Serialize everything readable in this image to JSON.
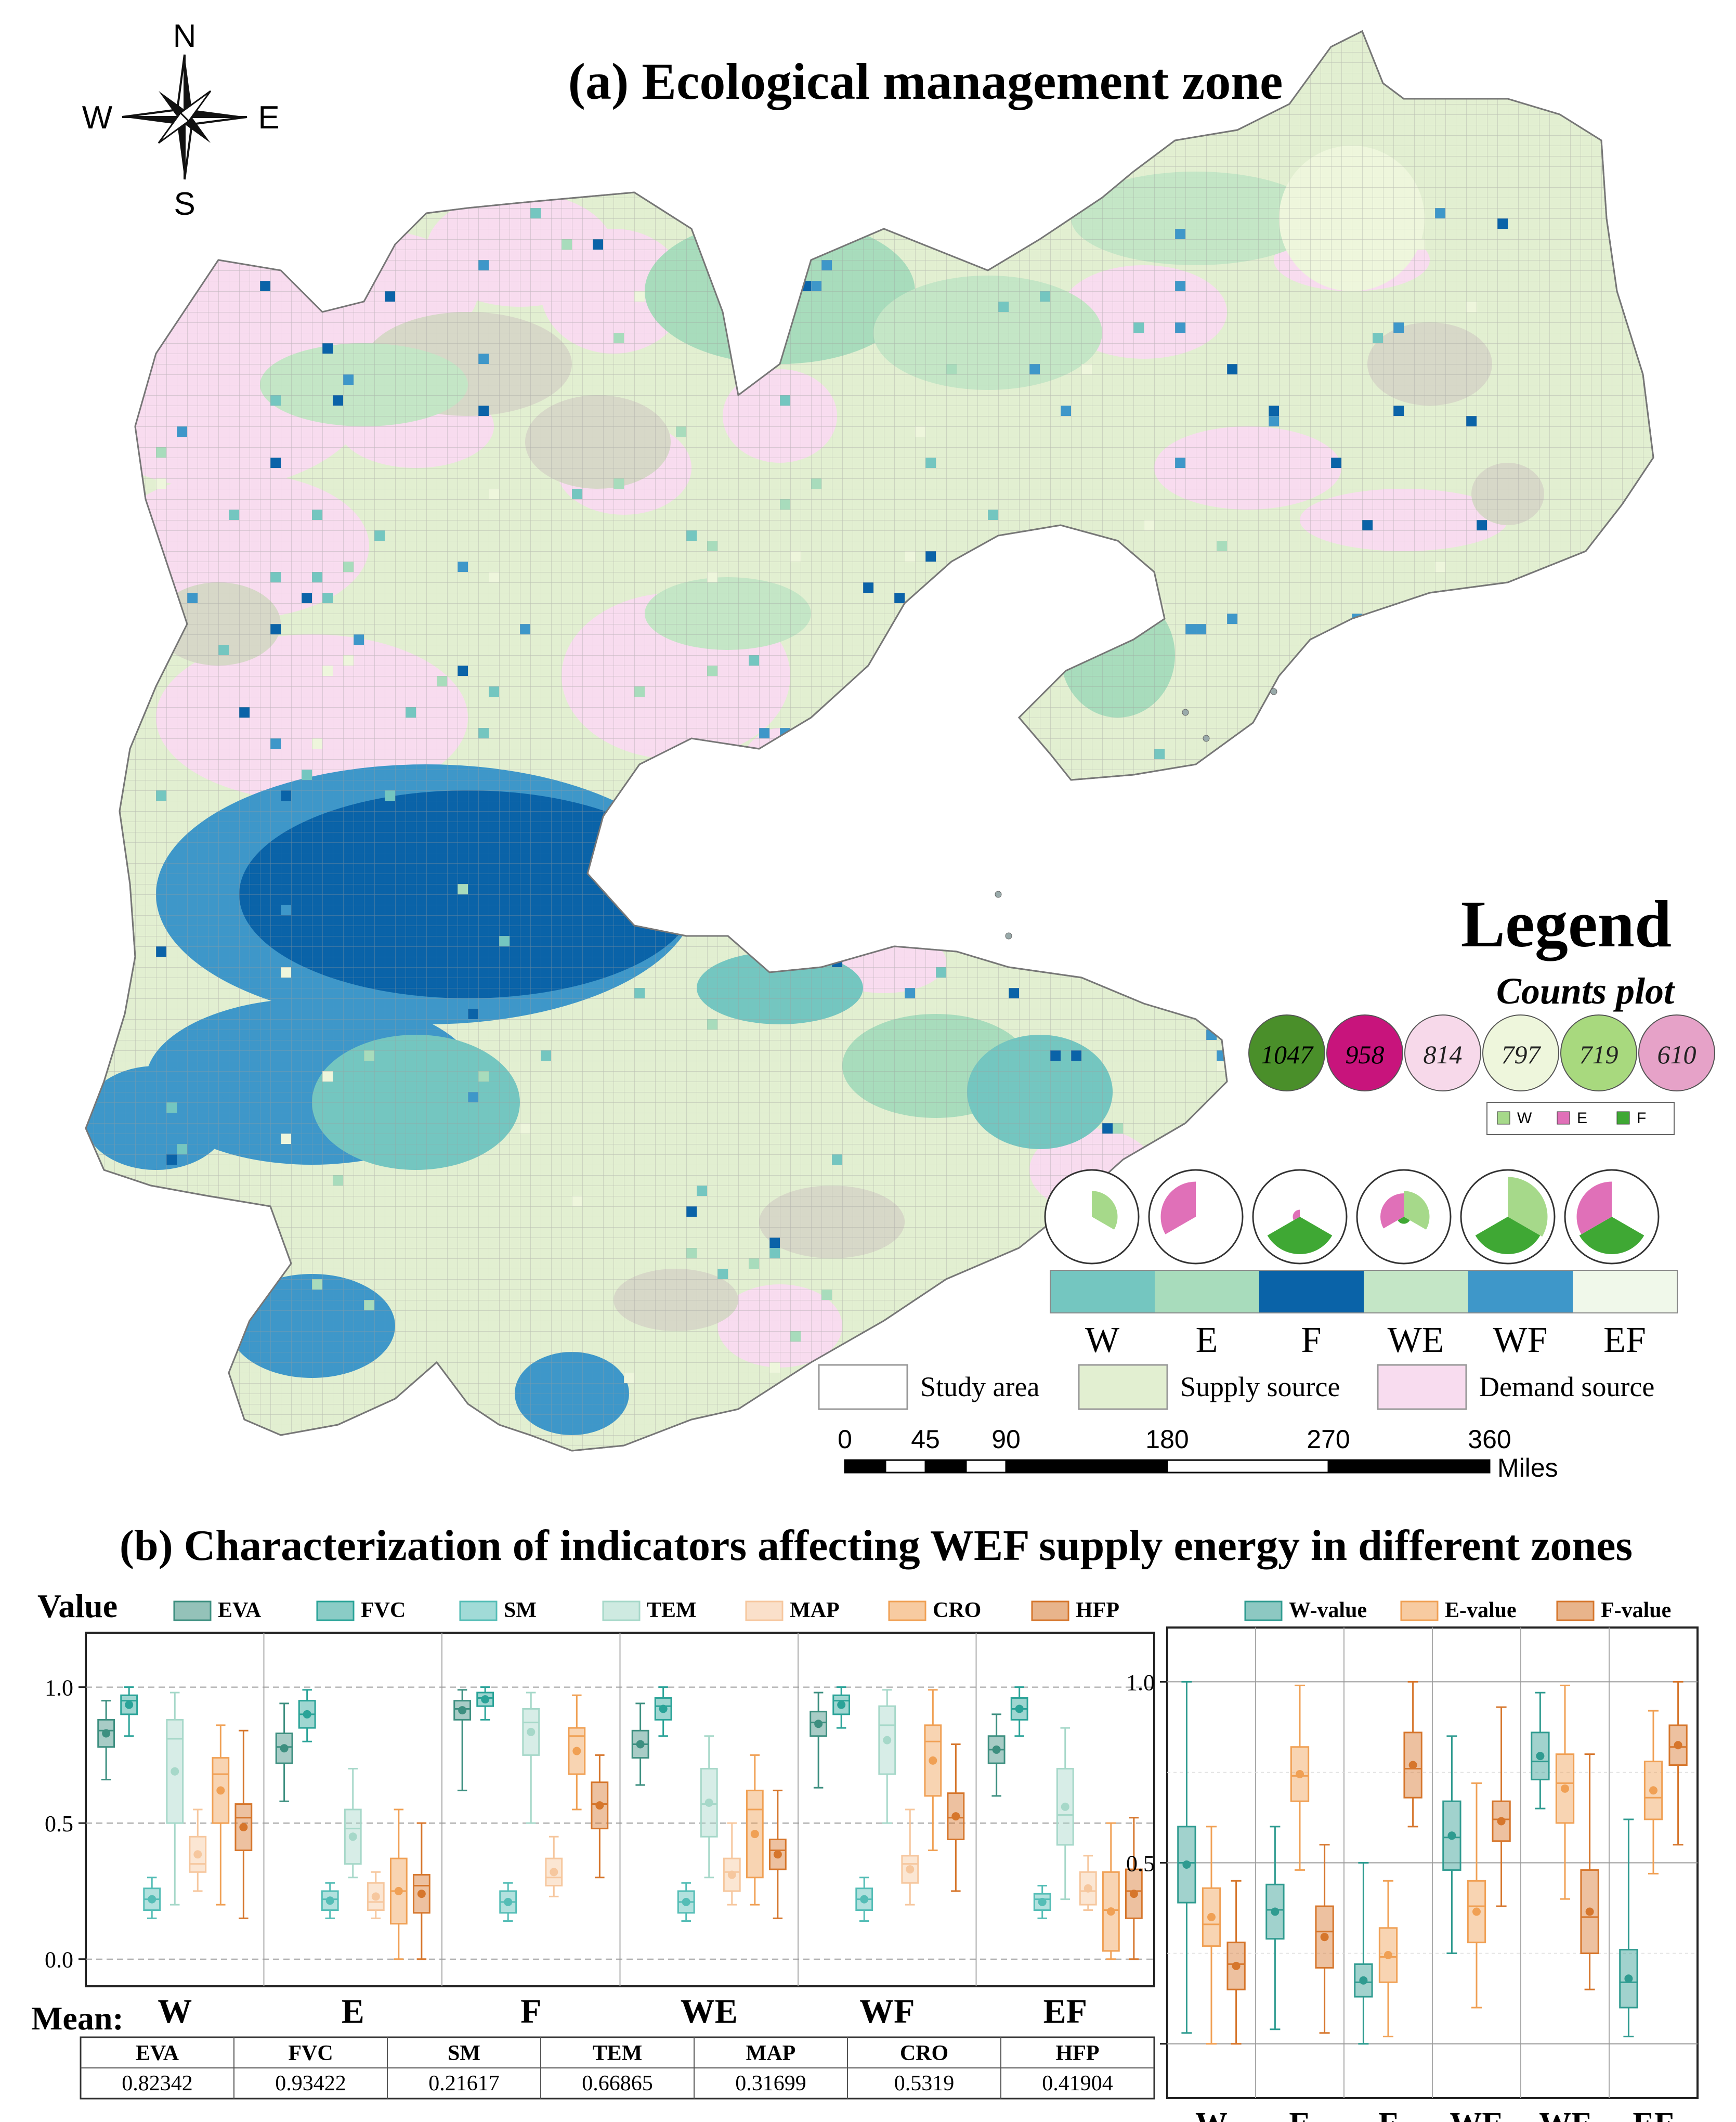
{
  "panel_a": {
    "title": "(a) Ecological management zone",
    "compass": {
      "n": "N",
      "s": "S",
      "w": "W",
      "e": "E"
    },
    "legend": {
      "title": "Legend",
      "counts_title": "Counts plot",
      "counts": [
        {
          "value": "1047",
          "color": "#4a8f2a"
        },
        {
          "value": "958",
          "color": "#c8147c"
        },
        {
          "value": "814",
          "color": "#f7d9ea"
        },
        {
          "value": "797",
          "color": "#eef6dc"
        },
        {
          "value": "719",
          "color": "#a8d97e"
        },
        {
          "value": "610",
          "color": "#e6a2c8"
        }
      ],
      "wef_keys": [
        {
          "label": "W",
          "color": "#a6d98a"
        },
        {
          "label": "E",
          "color": "#e070b8"
        },
        {
          "label": "F",
          "color": "#3fa834"
        }
      ],
      "roses": [
        {
          "W": 0.55,
          "E": 0,
          "F": 0
        },
        {
          "W": 0,
          "E": 0.75,
          "F": 0
        },
        {
          "W": 0,
          "E": 0.15,
          "F": 0.8
        },
        {
          "W": 0.55,
          "E": 0.5,
          "F": 0.15
        },
        {
          "W": 0.85,
          "E": 0,
          "F": 0.8
        },
        {
          "W": 0,
          "E": 0.75,
          "F": 0.8
        }
      ],
      "zones": [
        {
          "label": "W",
          "color": "#74c6c0"
        },
        {
          "label": "E",
          "color": "#a8dcbc"
        },
        {
          "label": "F",
          "color": "#0a63a8"
        },
        {
          "label": "WE",
          "color": "#c4e6c6"
        },
        {
          "label": "WF",
          "color": "#3e97c9"
        },
        {
          "label": "EF",
          "color": "#f0f8ea"
        }
      ],
      "areas": [
        {
          "label": "Study area",
          "color": "#ffffff"
        },
        {
          "label": "Supply source",
          "color": "#e2efd1"
        },
        {
          "label": "Demand source",
          "color": "#f8dcef"
        }
      ]
    },
    "scale": {
      "ticks": [
        "0",
        "45",
        "90",
        "180",
        "270",
        "360"
      ],
      "unit": "Miles"
    }
  },
  "panel_b": {
    "title": "(b) Characterization of indicators affecting WEF supply energy in different zones",
    "value_label": "Value",
    "mean_label": "Mean:",
    "mean_table": {
      "headers": [
        "EVA",
        "FVC",
        "SM",
        "TEM",
        "MAP",
        "CRO",
        "HFP"
      ],
      "values": [
        "0.82342",
        "0.93422",
        "0.21617",
        "0.66865",
        "0.31699",
        "0.5319",
        "0.41904"
      ]
    }
  },
  "chart_data": [
    {
      "type": "box",
      "categories": [
        "W",
        "E",
        "F",
        "WE",
        "WF",
        "EF"
      ],
      "ylabel": "Value",
      "ylim": [
        -0.1,
        1.2
      ],
      "yticks": [
        "0.0",
        "0.5",
        "1.0"
      ],
      "grid": "dashed horizontal at 0.0, 0.5, 1.0",
      "legend_position": "top",
      "series": [
        {
          "name": "EVA",
          "color": "#3d8f80",
          "boxes": [
            [
              0.66,
              0.78,
              0.84,
              0.88,
              0.95
            ],
            [
              0.58,
              0.72,
              0.78,
              0.83,
              0.94
            ],
            [
              0.62,
              0.88,
              0.92,
              0.95,
              0.99
            ],
            [
              0.64,
              0.74,
              0.79,
              0.84,
              0.94
            ],
            [
              0.63,
              0.82,
              0.87,
              0.91,
              0.98
            ],
            [
              0.6,
              0.72,
              0.77,
              0.82,
              0.9
            ]
          ]
        },
        {
          "name": "FVC",
          "color": "#2aa398",
          "boxes": [
            [
              0.82,
              0.9,
              0.95,
              0.97,
              1.0
            ],
            [
              0.8,
              0.85,
              0.9,
              0.95,
              0.99
            ],
            [
              0.88,
              0.93,
              0.96,
              0.98,
              1.0
            ],
            [
              0.82,
              0.88,
              0.93,
              0.96,
              1.0
            ],
            [
              0.85,
              0.9,
              0.95,
              0.97,
              1.0
            ],
            [
              0.82,
              0.88,
              0.92,
              0.96,
              1.0
            ]
          ]
        },
        {
          "name": "SM",
          "color": "#54bdb6",
          "boxes": [
            [
              0.15,
              0.18,
              0.22,
              0.26,
              0.3
            ],
            [
              0.15,
              0.18,
              0.22,
              0.25,
              0.28
            ],
            [
              0.14,
              0.17,
              0.21,
              0.25,
              0.28
            ],
            [
              0.14,
              0.17,
              0.21,
              0.25,
              0.28
            ],
            [
              0.14,
              0.18,
              0.22,
              0.26,
              0.3
            ],
            [
              0.15,
              0.18,
              0.22,
              0.24,
              0.27
            ]
          ]
        },
        {
          "name": "TEM",
          "color": "#a6d8c9",
          "boxes": [
            [
              0.2,
              0.5,
              0.81,
              0.88,
              0.98
            ],
            [
              0.3,
              0.35,
              0.48,
              0.55,
              0.7
            ],
            [
              0.5,
              0.75,
              0.87,
              0.92,
              0.98
            ],
            [
              0.3,
              0.45,
              0.57,
              0.7,
              0.82
            ],
            [
              0.5,
              0.68,
              0.86,
              0.93,
              0.99
            ],
            [
              0.22,
              0.42,
              0.53,
              0.7,
              0.85
            ]
          ]
        },
        {
          "name": "MAP",
          "color": "#f6c79e",
          "boxes": [
            [
              0.25,
              0.32,
              0.35,
              0.45,
              0.55
            ],
            [
              0.15,
              0.18,
              0.21,
              0.28,
              0.32
            ],
            [
              0.23,
              0.27,
              0.3,
              0.37,
              0.45
            ],
            [
              0.2,
              0.25,
              0.32,
              0.37,
              0.5
            ],
            [
              0.2,
              0.28,
              0.35,
              0.38,
              0.55
            ],
            [
              0.18,
              0.2,
              0.25,
              0.32,
              0.38
            ]
          ]
        },
        {
          "name": "CRO",
          "color": "#f0a054",
          "boxes": [
            [
              0.2,
              0.5,
              0.68,
              0.74,
              0.86
            ],
            [
              0.0,
              0.13,
              0.25,
              0.37,
              0.55
            ],
            [
              0.55,
              0.68,
              0.82,
              0.85,
              0.97
            ],
            [
              0.2,
              0.3,
              0.55,
              0.62,
              0.75
            ],
            [
              0.4,
              0.6,
              0.8,
              0.86,
              0.99
            ],
            [
              0.0,
              0.03,
              0.18,
              0.32,
              0.5
            ]
          ]
        },
        {
          "name": "HFP",
          "color": "#d6762c",
          "boxes": [
            [
              0.15,
              0.4,
              0.52,
              0.57,
              0.84
            ],
            [
              0.0,
              0.17,
              0.27,
              0.31,
              0.5
            ],
            [
              0.3,
              0.48,
              0.57,
              0.65,
              0.75
            ],
            [
              0.15,
              0.33,
              0.4,
              0.44,
              0.62
            ],
            [
              0.25,
              0.44,
              0.52,
              0.61,
              0.79
            ],
            [
              0.0,
              0.15,
              0.25,
              0.33,
              0.52
            ]
          ]
        }
      ]
    },
    {
      "type": "box",
      "categories": [
        "W",
        "E",
        "F",
        "WE",
        "WF",
        "EF"
      ],
      "ylim": [
        -0.15,
        1.15
      ],
      "yticks": [
        "0.0",
        "0.5",
        "1.0"
      ],
      "legend_position": "top",
      "series": [
        {
          "name": "W-value",
          "color": "#2f9b90",
          "boxes": [
            [
              0.03,
              0.39,
              0.5,
              0.6,
              1.0
            ],
            [
              0.04,
              0.29,
              0.37,
              0.44,
              0.6
            ],
            [
              0.0,
              0.13,
              0.17,
              0.22,
              0.5
            ],
            [
              0.25,
              0.48,
              0.57,
              0.67,
              0.85
            ],
            [
              0.65,
              0.73,
              0.78,
              0.86,
              0.97
            ],
            [
              0.02,
              0.1,
              0.17,
              0.26,
              0.62
            ]
          ]
        },
        {
          "name": "E-value",
          "color": "#f0a054",
          "boxes": [
            [
              0.0,
              0.27,
              0.33,
              0.43,
              0.6
            ],
            [
              0.48,
              0.67,
              0.74,
              0.82,
              0.99
            ],
            [
              0.02,
              0.17,
              0.24,
              0.32,
              0.45
            ],
            [
              0.1,
              0.28,
              0.38,
              0.45,
              0.72
            ],
            [
              0.4,
              0.61,
              0.72,
              0.8,
              0.99
            ],
            [
              0.47,
              0.62,
              0.68,
              0.78,
              0.92
            ]
          ]
        },
        {
          "name": "F-value",
          "color": "#d6762c",
          "boxes": [
            [
              0.0,
              0.15,
              0.22,
              0.28,
              0.45
            ],
            [
              0.03,
              0.21,
              0.31,
              0.38,
              0.55
            ],
            [
              0.6,
              0.68,
              0.76,
              0.86,
              1.0
            ],
            [
              0.38,
              0.56,
              0.62,
              0.67,
              0.93
            ],
            [
              0.15,
              0.25,
              0.35,
              0.48,
              0.8
            ],
            [
              0.55,
              0.77,
              0.82,
              0.88,
              1.0
            ]
          ]
        }
      ]
    }
  ]
}
